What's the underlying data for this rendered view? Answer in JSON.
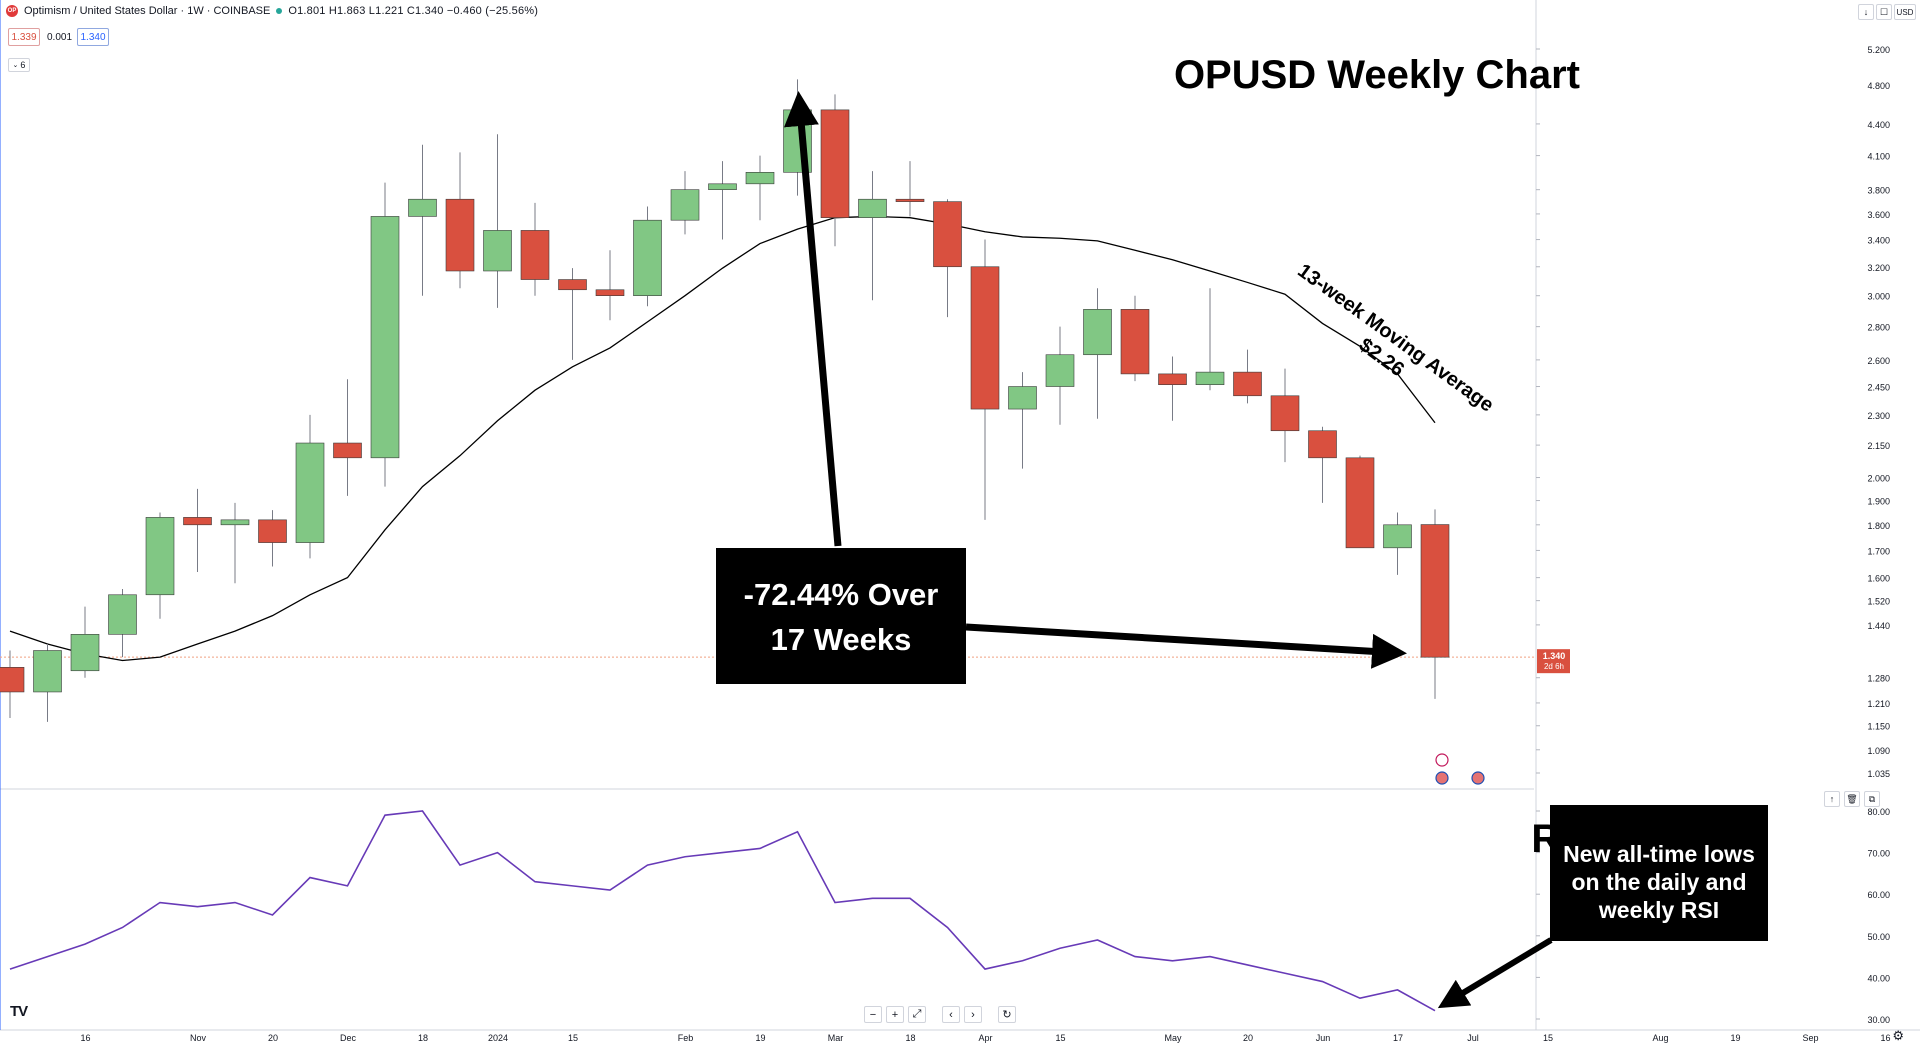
{
  "header": {
    "symbol_title": "Optimism / United States Dollar · 1W · COINBASE",
    "logo_text": "OP",
    "ohlc": "O1.801 H1.863 L1.221 C1.340 −0.460 (−25.56%)",
    "bid": "1.339",
    "spread": "0.001",
    "ask": "1.340",
    "indicators_count": "6"
  },
  "toolbar": {
    "currency": "USD",
    "down_label": "↓",
    "max_label": "☐"
  },
  "navbar": {
    "zoom_out": "−",
    "zoom_in": "+",
    "reset_scale": "⤢",
    "scroll_left": "‹",
    "scroll_right": "›",
    "reset": "↻"
  },
  "colors": {
    "up": "#81c784",
    "down": "#d9503f",
    "wick": "#787b86",
    "ma": "#000000",
    "rsi": "#673ab7",
    "price_line": "#f0a080",
    "last_price_bg": "#d9503f"
  },
  "annotations": {
    "title": "OPUSD Weekly Chart",
    "drop_line1": "-72.44% Over",
    "drop_line2": "17 Weeks",
    "ma_label1": "13-week Moving Average",
    "ma_label2": "$2.26",
    "rsi_title": "RSI",
    "rsi_note1": "New all-time lows",
    "rsi_note2": "on the daily and",
    "rsi_note3": "weekly RSI"
  },
  "chart_data": [
    {
      "type": "candlestick",
      "title": "Optimism / United States Dollar · 1W · COINBASE",
      "y_scale": "log",
      "ylim": [
        1.0,
        5.3
      ],
      "y_ticks": [
        5.2,
        4.8,
        4.4,
        4.1,
        3.8,
        3.6,
        3.4,
        3.2,
        3.0,
        2.8,
        2.6,
        2.45,
        2.3,
        2.15,
        2.0,
        1.9,
        1.8,
        1.7,
        1.6,
        1.52,
        1.44,
        1.28,
        1.21,
        1.15,
        1.09,
        1.035
      ],
      "y_tick_labels": [
        "5.200",
        "4.800",
        "4.400",
        "4.100",
        "3.800",
        "3.600",
        "3.400",
        "3.200",
        "3.000",
        "2.800",
        "2.600",
        "2.450",
        "2.300",
        "2.150",
        "2.000",
        "1.900",
        "1.800",
        "1.700",
        "1.600",
        "1.520",
        "1.440",
        "1.280",
        "1.210",
        "1.150",
        "1.090",
        "1.035"
      ],
      "x_labels": [
        {
          "label": "16",
          "week": 1
        },
        {
          "label": "Nov",
          "week": 4
        },
        {
          "label": "20",
          "week": 6
        },
        {
          "label": "Dec",
          "week": 8
        },
        {
          "label": "18",
          "week": 10
        },
        {
          "label": "2024",
          "week": 12
        },
        {
          "label": "15",
          "week": 14
        },
        {
          "label": "Feb",
          "week": 17
        },
        {
          "label": "19",
          "week": 19
        },
        {
          "label": "Mar",
          "week": 21
        },
        {
          "label": "18",
          "week": 23
        },
        {
          "label": "Apr",
          "week": 25
        },
        {
          "label": "15",
          "week": 27
        },
        {
          "label": "May",
          "week": 30
        },
        {
          "label": "20",
          "week": 32
        },
        {
          "label": "Jun",
          "week": 34
        },
        {
          "label": "17",
          "week": 36
        },
        {
          "label": "Jul",
          "week": 38
        },
        {
          "label": "15",
          "week": 40
        },
        {
          "label": "Aug",
          "week": 43
        },
        {
          "label": "19",
          "week": 45
        },
        {
          "label": "Sep",
          "week": 47
        },
        {
          "label": "16",
          "week": 49
        }
      ],
      "candles": [
        {
          "o": 1.31,
          "h": 1.36,
          "l": 1.17,
          "c": 1.24
        },
        {
          "o": 1.24,
          "h": 1.38,
          "l": 1.16,
          "c": 1.36
        },
        {
          "o": 1.3,
          "h": 1.5,
          "l": 1.28,
          "c": 1.41
        },
        {
          "o": 1.41,
          "h": 1.56,
          "l": 1.34,
          "c": 1.54
        },
        {
          "o": 1.54,
          "h": 1.85,
          "l": 1.46,
          "c": 1.83
        },
        {
          "o": 1.83,
          "h": 1.95,
          "l": 1.62,
          "c": 1.8
        },
        {
          "o": 1.8,
          "h": 1.89,
          "l": 1.58,
          "c": 1.82
        },
        {
          "o": 1.82,
          "h": 1.86,
          "l": 1.64,
          "c": 1.73
        },
        {
          "o": 1.73,
          "h": 2.3,
          "l": 1.67,
          "c": 2.16
        },
        {
          "o": 2.16,
          "h": 2.49,
          "l": 1.92,
          "c": 2.09
        },
        {
          "o": 2.09,
          "h": 3.86,
          "l": 1.96,
          "c": 3.58
        },
        {
          "o": 3.58,
          "h": 4.2,
          "l": 3.0,
          "c": 3.72
        },
        {
          "o": 3.72,
          "h": 4.13,
          "l": 3.05,
          "c": 3.17
        },
        {
          "o": 3.17,
          "h": 4.3,
          "l": 2.92,
          "c": 3.47
        },
        {
          "o": 3.47,
          "h": 3.69,
          "l": 3.0,
          "c": 3.11
        },
        {
          "o": 3.11,
          "h": 3.19,
          "l": 2.6,
          "c": 3.04
        },
        {
          "o": 3.04,
          "h": 3.32,
          "l": 2.84,
          "c": 3.0
        },
        {
          "o": 3.0,
          "h": 3.66,
          "l": 2.93,
          "c": 3.55
        },
        {
          "o": 3.55,
          "h": 3.96,
          "l": 3.44,
          "c": 3.8
        },
        {
          "o": 3.8,
          "h": 4.05,
          "l": 3.4,
          "c": 3.85
        },
        {
          "o": 3.85,
          "h": 4.1,
          "l": 3.55,
          "c": 3.95
        },
        {
          "o": 3.95,
          "h": 4.86,
          "l": 3.75,
          "c": 4.54
        },
        {
          "o": 4.54,
          "h": 4.7,
          "l": 3.35,
          "c": 3.57
        },
        {
          "o": 3.57,
          "h": 3.96,
          "l": 2.97,
          "c": 3.72
        },
        {
          "o": 3.72,
          "h": 4.05,
          "l": 3.58,
          "c": 3.7
        },
        {
          "o": 3.7,
          "h": 3.72,
          "l": 2.86,
          "c": 3.2
        },
        {
          "o": 3.2,
          "h": 3.4,
          "l": 1.82,
          "c": 2.33
        },
        {
          "o": 2.33,
          "h": 2.53,
          "l": 2.04,
          "c": 2.45
        },
        {
          "o": 2.45,
          "h": 2.8,
          "l": 2.25,
          "c": 2.63
        },
        {
          "o": 2.63,
          "h": 3.05,
          "l": 2.28,
          "c": 2.91
        },
        {
          "o": 2.91,
          "h": 3.0,
          "l": 2.48,
          "c": 2.52
        },
        {
          "o": 2.52,
          "h": 2.62,
          "l": 2.27,
          "c": 2.46
        },
        {
          "o": 2.46,
          "h": 3.05,
          "l": 2.43,
          "c": 2.53
        },
        {
          "o": 2.53,
          "h": 2.66,
          "l": 2.36,
          "c": 2.4
        },
        {
          "o": 2.4,
          "h": 2.55,
          "l": 2.07,
          "c": 2.22
        },
        {
          "o": 2.22,
          "h": 2.24,
          "l": 1.89,
          "c": 2.09
        },
        {
          "o": 2.09,
          "h": 2.1,
          "l": 1.71,
          "c": 1.71
        },
        {
          "o": 1.71,
          "h": 1.85,
          "l": 1.61,
          "c": 1.8
        },
        {
          "o": 1.801,
          "h": 1.863,
          "l": 1.221,
          "c": 1.34
        }
      ],
      "ma_13w": {
        "label": "13-week Moving Average",
        "last_value_label": "$2.26",
        "values": [
          1.42,
          1.38,
          1.35,
          1.33,
          1.34,
          1.38,
          1.42,
          1.47,
          1.54,
          1.6,
          1.78,
          1.96,
          2.1,
          2.27,
          2.43,
          2.56,
          2.67,
          2.83,
          3.0,
          3.19,
          3.37,
          3.48,
          3.57,
          3.58,
          3.57,
          3.52,
          3.46,
          3.42,
          3.41,
          3.39,
          3.32,
          3.25,
          3.17,
          3.09,
          3.01,
          2.82,
          2.68,
          2.52,
          2.26
        ]
      },
      "last_price": {
        "value": 1.34,
        "label": "1.340",
        "countdown": "2d 6h"
      }
    },
    {
      "type": "line",
      "title": "RSI",
      "ylim": [
        30,
        83
      ],
      "y_ticks": [
        80,
        70,
        60,
        50,
        40,
        30
      ],
      "y_tick_labels": [
        "80.00",
        "70.00",
        "60.00",
        "50.00",
        "40.00",
        "30.00"
      ],
      "series": [
        {
          "values": [
            42,
            45,
            48,
            52,
            58,
            57,
            58,
            55,
            64,
            62,
            79,
            80,
            67,
            70,
            63,
            62,
            61,
            67,
            69,
            70,
            71,
            75,
            58,
            59,
            59,
            52,
            42,
            44,
            47,
            49,
            45,
            44,
            45,
            43,
            41,
            39,
            35,
            37,
            32
          ]
        }
      ]
    }
  ]
}
